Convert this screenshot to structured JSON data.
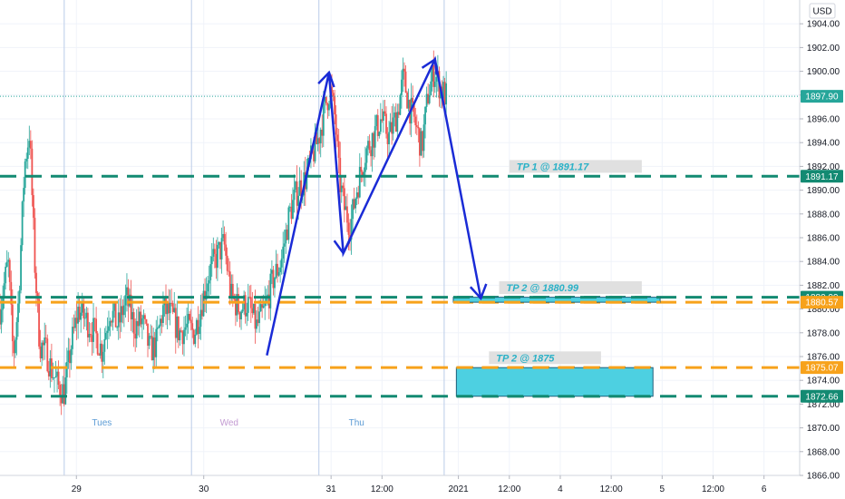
{
  "chart_data": {
    "type": "candlestick",
    "currency": "USD",
    "y_axis": {
      "ylim": [
        1866.0,
        1906.0
      ],
      "ticks": [
        "1904.00",
        "1902.00",
        "1900.00",
        "1898.00",
        "1896.00",
        "1894.00",
        "1892.00",
        "1890.00",
        "1888.00",
        "1886.00",
        "1884.00",
        "1882.00",
        "1880.00",
        "1878.00",
        "1876.00",
        "1874.00",
        "1872.00",
        "1870.00",
        "1868.00",
        "1866.00"
      ]
    },
    "x_axis": {
      "ticks": [
        {
          "label": "29",
          "t": 0.75
        },
        {
          "label": "30",
          "t": 2.0
        },
        {
          "label": "31",
          "t": 3.25
        },
        {
          "label": "12:00",
          "t": 3.75
        },
        {
          "label": "2021",
          "t": 4.5
        },
        {
          "label": "12:00",
          "t": 5.0
        },
        {
          "label": "4",
          "t": 5.5
        },
        {
          "label": "12:00",
          "t": 6.0
        },
        {
          "label": "5",
          "t": 6.5
        },
        {
          "label": "12:00",
          "t": 7.0
        },
        {
          "label": "6",
          "t": 7.5
        }
      ],
      "xlim": [
        0.0,
        7.85
      ],
      "session_lines": [
        0.63,
        1.88,
        3.13,
        4.36
      ]
    },
    "day_labels": [
      {
        "label": "Tues",
        "t": 1.0,
        "color": "#5b9bd5"
      },
      {
        "label": "Wed",
        "t": 2.25,
        "color": "#c39bd3"
      },
      {
        "label": "Thu",
        "t": 3.5,
        "color": "#5b9bd5"
      }
    ],
    "last_price": {
      "value": 1897.9,
      "label": "1897.90",
      "color": "#26a69a"
    },
    "levels": [
      {
        "value": 1891.17,
        "label": "1891.17",
        "color": "#138a72",
        "style": "dashed"
      },
      {
        "value": 1880.99,
        "label": "1880.99",
        "color": "#138a72",
        "style": "dashed"
      },
      {
        "value": 1880.57,
        "label": "1880.57",
        "color": "#f7a21b",
        "style": "dashed"
      },
      {
        "value": 1875.07,
        "label": "1875.07",
        "color": "#f7a21b",
        "style": "dashed"
      },
      {
        "value": 1872.66,
        "label": "1872.66",
        "color": "#138a72",
        "style": "dashed"
      }
    ],
    "annotations": [
      {
        "text": "TP 1 @ 1891.17",
        "t0": 5.0,
        "t1": 6.3,
        "y": 1892.0,
        "color": "#2ab1c7"
      },
      {
        "text": "TP 2 @ 1880.99",
        "t0": 4.9,
        "t1": 6.3,
        "y": 1881.8,
        "color": "#2ab1c7"
      },
      {
        "text": "TP 2 @ 1875",
        "t0": 4.8,
        "t1": 5.9,
        "y": 1875.9,
        "color": "#2ab1c7"
      }
    ],
    "zones": [
      {
        "t0": 4.45,
        "t1": 6.48,
        "y0": 1880.57,
        "y1": 1880.99,
        "color": "#4dd0e1"
      },
      {
        "t0": 4.48,
        "t1": 6.41,
        "y0": 1872.66,
        "y1": 1875.07,
        "color": "#4dd0e1"
      }
    ],
    "drawn_path": {
      "color": "#1a2bd6",
      "points": [
        [
          2.62,
          1876.1
        ],
        [
          3.23,
          1899.9
        ],
        [
          3.37,
          1884.7
        ],
        [
          4.27,
          1901.0
        ],
        [
          4.72,
          1880.9
        ]
      ],
      "arrowheads": [
        1,
        2,
        3,
        4
      ]
    },
    "candle_anchors": [
      [
        0.0,
        1880.0
      ],
      [
        0.08,
        1884.0
      ],
      [
        0.13,
        1876.0
      ],
      [
        0.18,
        1880.5
      ],
      [
        0.24,
        1892.0
      ],
      [
        0.29,
        1895.0
      ],
      [
        0.34,
        1884.0
      ],
      [
        0.39,
        1877.0
      ],
      [
        0.45,
        1876.5
      ],
      [
        0.5,
        1875.0
      ],
      [
        0.57,
        1873.5
      ],
      [
        0.63,
        1873.0
      ],
      [
        0.7,
        1877.0
      ],
      [
        0.77,
        1880.0
      ],
      [
        0.85,
        1879.0
      ],
      [
        0.93,
        1878.0
      ],
      [
        1.0,
        1876.5
      ],
      [
        1.08,
        1880.0
      ],
      [
        1.16,
        1878.5
      ],
      [
        1.24,
        1881.0
      ],
      [
        1.32,
        1878.5
      ],
      [
        1.4,
        1879.0
      ],
      [
        1.47,
        1876.5
      ],
      [
        1.53,
        1877.0
      ],
      [
        1.6,
        1880.0
      ],
      [
        1.68,
        1879.5
      ],
      [
        1.76,
        1878.0
      ],
      [
        1.83,
        1878.5
      ],
      [
        1.91,
        1878.0
      ],
      [
        1.98,
        1880.5
      ],
      [
        2.05,
        1883.0
      ],
      [
        2.13,
        1884.5
      ],
      [
        2.2,
        1885.5
      ],
      [
        2.27,
        1881.0
      ],
      [
        2.35,
        1880.0
      ],
      [
        2.43,
        1880.5
      ],
      [
        2.52,
        1878.5
      ],
      [
        2.6,
        1880.0
      ],
      [
        2.68,
        1882.5
      ],
      [
        2.76,
        1884.0
      ],
      [
        2.84,
        1888.0
      ],
      [
        2.92,
        1890.0
      ],
      [
        3.0,
        1891.0
      ],
      [
        3.07,
        1893.0
      ],
      [
        3.13,
        1894.5
      ],
      [
        3.19,
        1897.0
      ],
      [
        3.24,
        1898.5
      ],
      [
        3.29,
        1896.0
      ],
      [
        3.33,
        1891.0
      ],
      [
        3.38,
        1888.5
      ],
      [
        3.44,
        1887.0
      ],
      [
        3.5,
        1890.0
      ],
      [
        3.58,
        1893.0
      ],
      [
        3.66,
        1894.5
      ],
      [
        3.74,
        1896.0
      ],
      [
        3.82,
        1894.5
      ],
      [
        3.9,
        1896.5
      ],
      [
        3.96,
        1899.5
      ],
      [
        4.02,
        1897.0
      ],
      [
        4.08,
        1895.5
      ],
      [
        4.14,
        1893.5
      ],
      [
        4.2,
        1898.0
      ],
      [
        4.26,
        1900.0
      ],
      [
        4.33,
        1898.5
      ],
      [
        4.38,
        1897.9
      ]
    ]
  }
}
